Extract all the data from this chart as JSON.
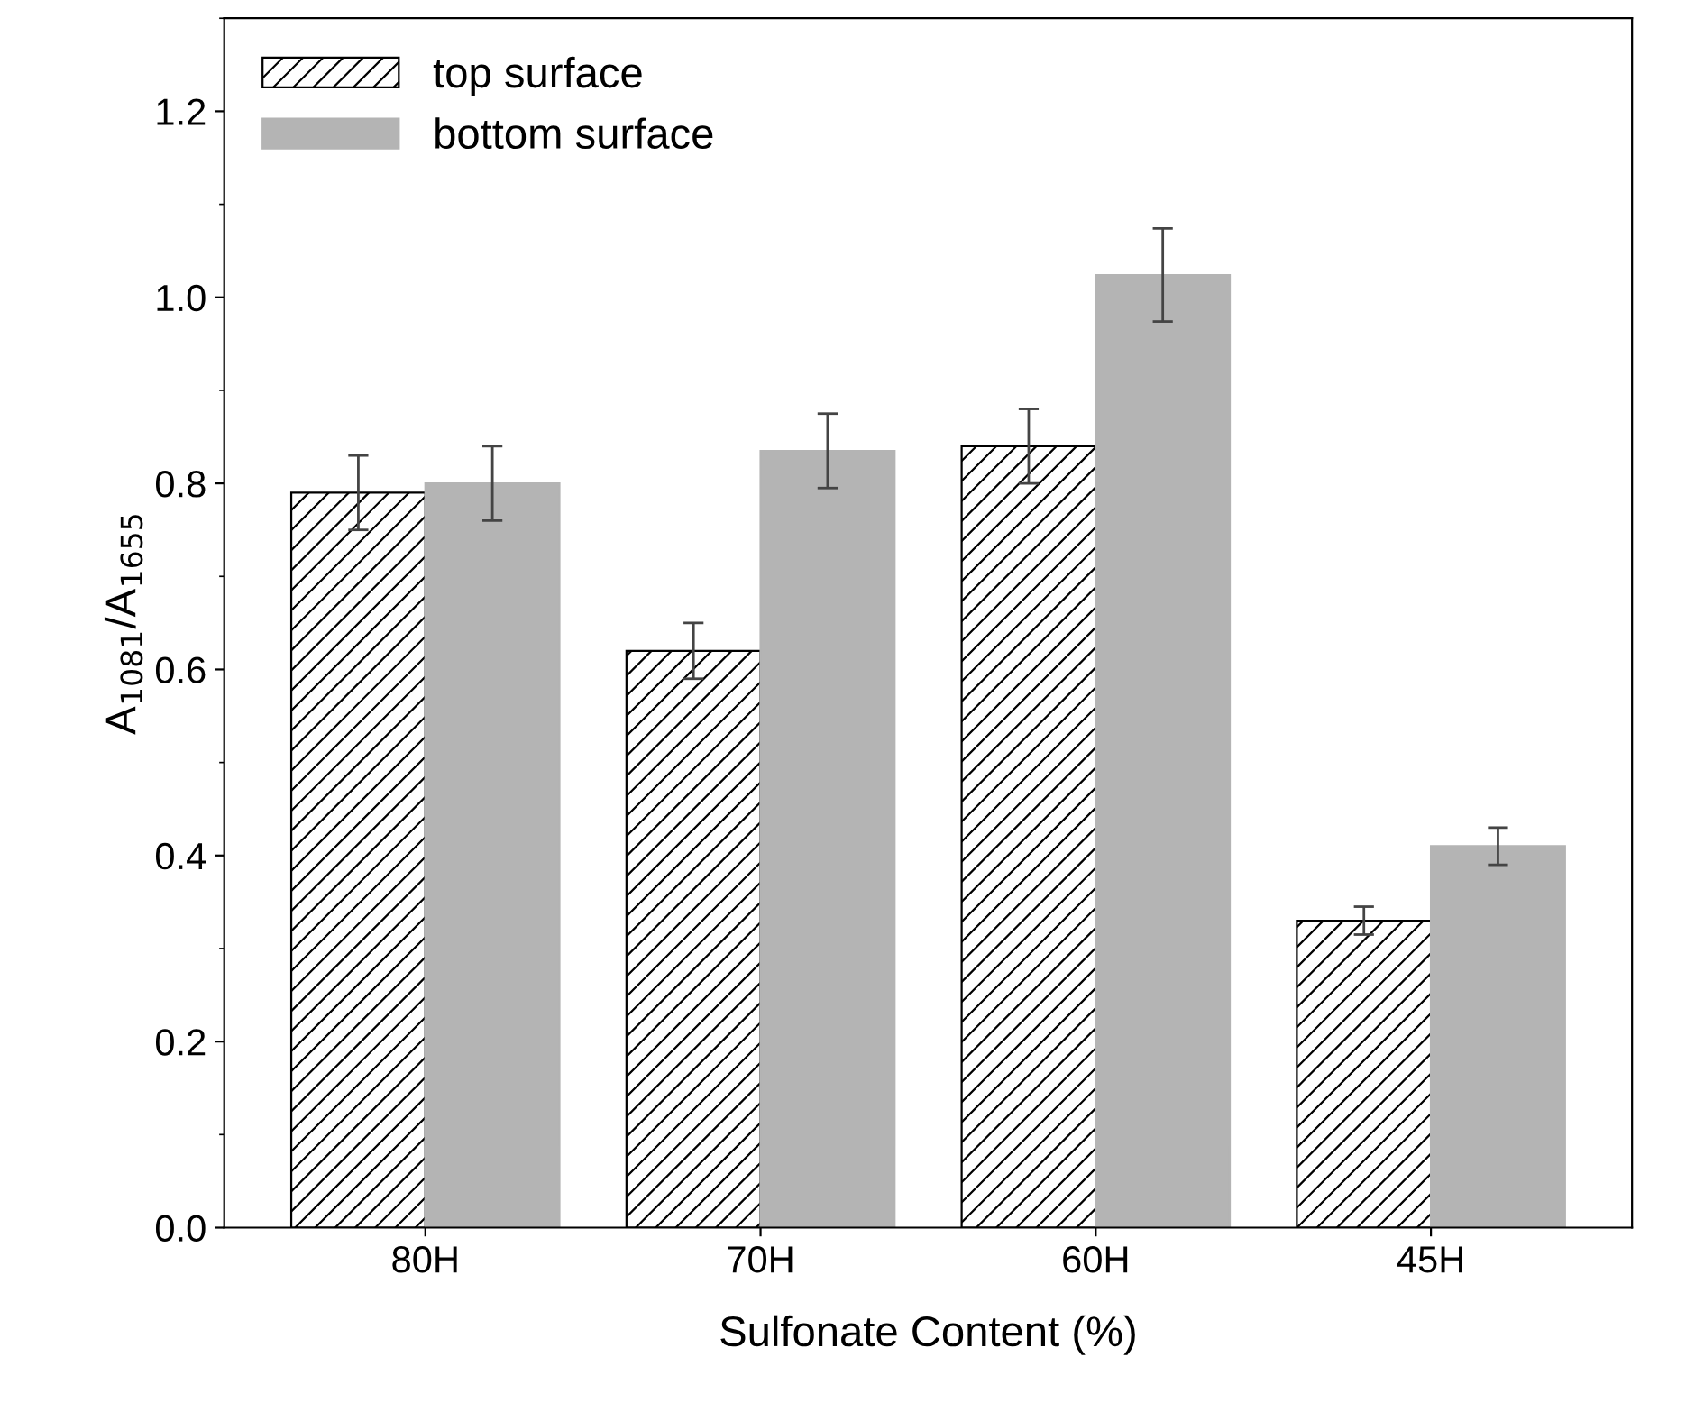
{
  "chart_data": {
    "type": "bar",
    "xlabel": "Sulfonate Content (%)",
    "ylabel": "A$_{1081}$/A$_{1655}$",
    "categories": [
      "80H",
      "70H",
      "60H",
      "45H"
    ],
    "series": [
      {
        "name": "top surface",
        "color": "#000000",
        "values": [
          0.79,
          0.62,
          0.84,
          0.33
        ],
        "errors": [
          0.04,
          0.03,
          0.04,
          0.015
        ]
      },
      {
        "name": "bottom surface",
        "color": "#b4b4b4",
        "values": [
          0.8,
          0.835,
          1.024,
          0.41
        ],
        "errors": [
          0.04,
          0.04,
          0.05,
          0.02
        ]
      }
    ],
    "ylim": [
      0,
      1.3
    ],
    "yticks": [
      {
        "value": 0,
        "label": "0.0"
      },
      {
        "value": 0.2,
        "label": "0.2"
      },
      {
        "value": 0.4,
        "label": "0.4"
      },
      {
        "value": 0.6,
        "label": "0.6"
      },
      {
        "value": 0.8,
        "label": "0.8"
      },
      {
        "value": 1.0,
        "label": "1.0"
      },
      {
        "value": 1.2,
        "label": "1.2"
      }
    ],
    "legend": "top left",
    "grid": false
  }
}
